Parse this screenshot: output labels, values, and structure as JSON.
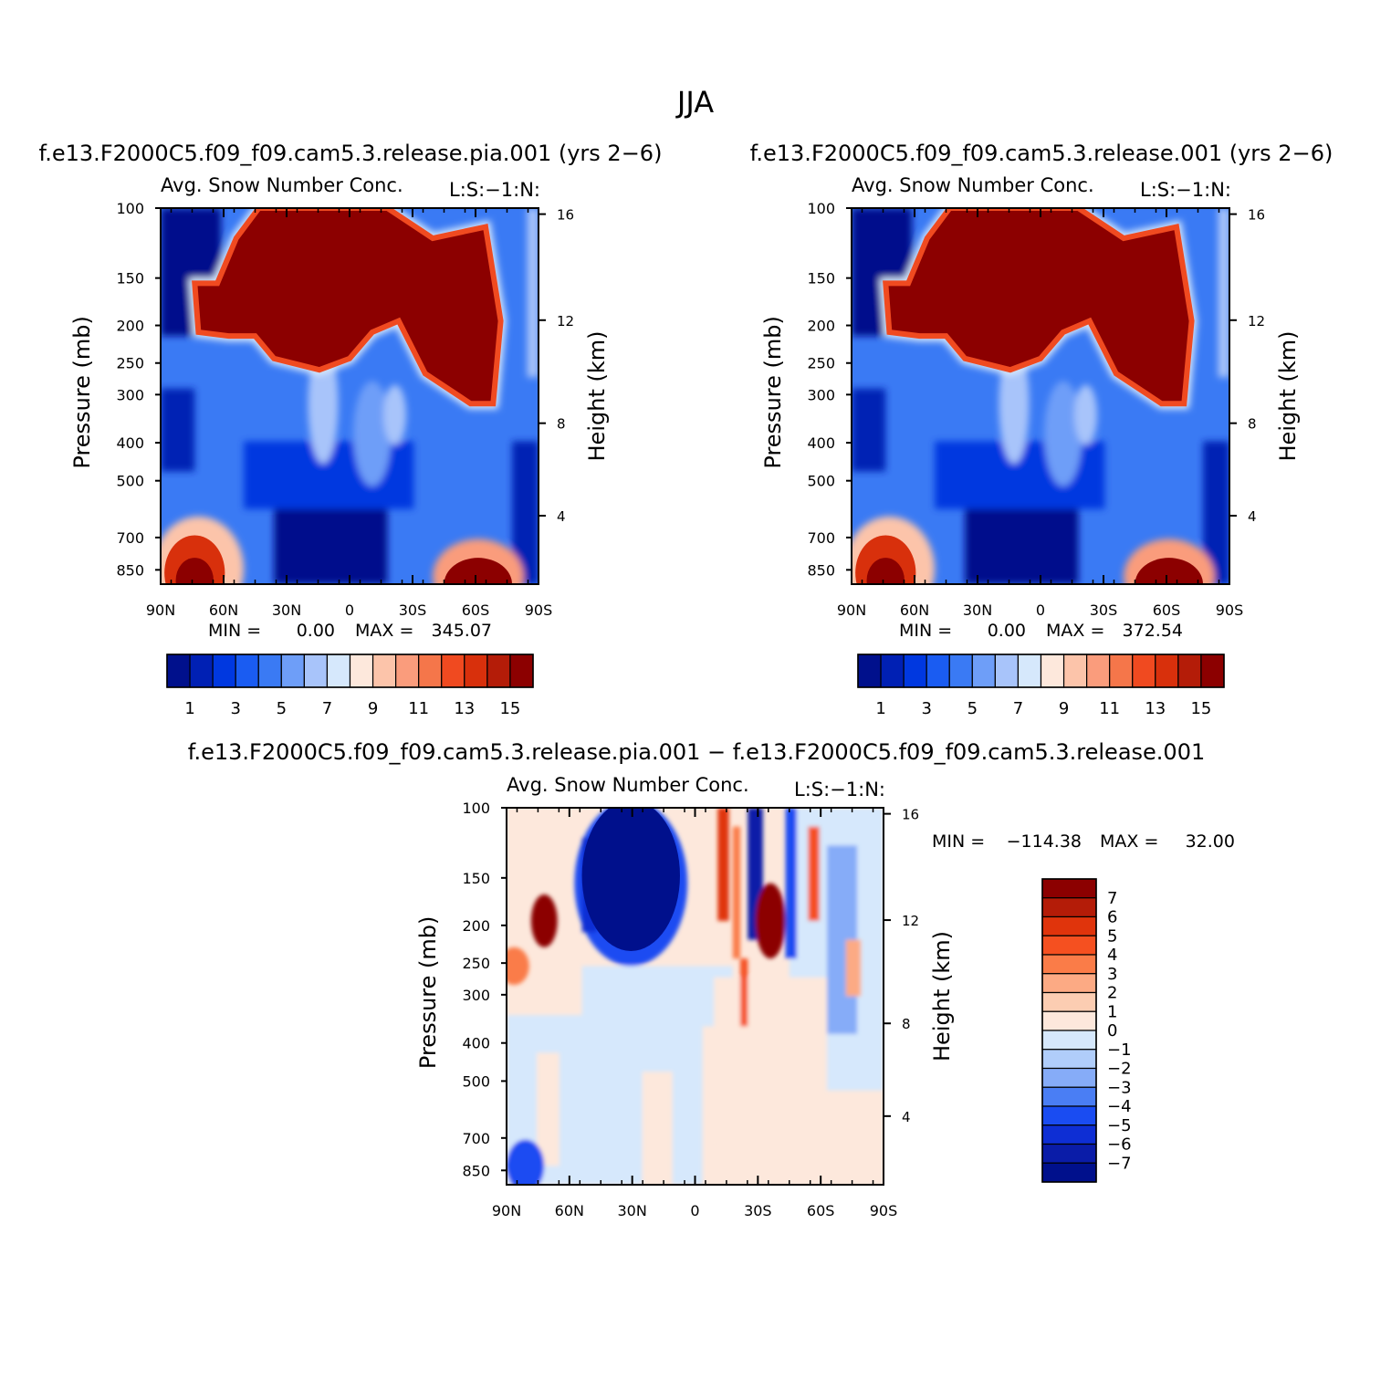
{
  "page_title": "JJA",
  "chart_data": [
    {
      "id": "panel1",
      "type": "heatmap",
      "case_title": "f.e13.F2000C5.f09_f09.cam5.3.release.pia.001 (yrs 2−6)",
      "title": "Avg. Snow Number Conc.",
      "units_label": "L:S:−1:N:",
      "ylabel": "Pressure (mb)",
      "ylabel_right": "Height (km)",
      "x_ticks": [
        "90N",
        "60N",
        "30N",
        "0",
        "30S",
        "60S",
        "90S"
      ],
      "y_ticks": [
        "100",
        "150",
        "200",
        "250",
        "300",
        "400",
        "500",
        "700",
        "850"
      ],
      "height_ticks": [
        "16",
        "12",
        "8",
        "4"
      ],
      "min_label": "MIN =",
      "min_value": "0.00",
      "max_label": "MAX =",
      "max_value": "345.07",
      "colorbar_labels": [
        "1",
        "3",
        "5",
        "7",
        "9",
        "11",
        "13",
        "15"
      ]
    },
    {
      "id": "panel2",
      "type": "heatmap",
      "case_title": "f.e13.F2000C5.f09_f09.cam5.3.release.001 (yrs 2−6)",
      "title": "Avg. Snow Number Conc.",
      "units_label": "L:S:−1:N:",
      "ylabel": "Pressure (mb)",
      "ylabel_right": "Height (km)",
      "x_ticks": [
        "90N",
        "60N",
        "30N",
        "0",
        "30S",
        "60S",
        "90S"
      ],
      "y_ticks": [
        "100",
        "150",
        "200",
        "250",
        "300",
        "400",
        "500",
        "700",
        "850"
      ],
      "height_ticks": [
        "16",
        "12",
        "8",
        "4"
      ],
      "min_label": "MIN =",
      "min_value": "0.00",
      "max_label": "MAX =",
      "max_value": "372.54",
      "colorbar_labels": [
        "1",
        "3",
        "5",
        "7",
        "9",
        "11",
        "13",
        "15"
      ]
    },
    {
      "id": "panel3",
      "type": "heatmap",
      "case_title": "f.e13.F2000C5.f09_f09.cam5.3.release.pia.001 − f.e13.F2000C5.f09_f09.cam5.3.release.001",
      "title": "Avg. Snow Number Conc.",
      "units_label": "L:S:−1:N:",
      "ylabel": "Pressure (mb)",
      "ylabel_right": "Height (km)",
      "x_ticks": [
        "90N",
        "60N",
        "30N",
        "0",
        "30S",
        "60S",
        "90S"
      ],
      "y_ticks": [
        "100",
        "150",
        "200",
        "250",
        "300",
        "400",
        "500",
        "700",
        "850"
      ],
      "height_ticks": [
        "16",
        "12",
        "8",
        "4"
      ],
      "min_label": "MIN =",
      "min_value": "−114.38",
      "max_label": "MAX =",
      "max_value": "32.00",
      "colorbar_labels": [
        "7",
        "6",
        "5",
        "4",
        "3",
        "2",
        "1",
        "0",
        "−1",
        "−2",
        "−3",
        "−4",
        "−5",
        "−6",
        "−7"
      ]
    }
  ],
  "colors": {
    "seq": [
      "#00108c",
      "#0020b4",
      "#0038e0",
      "#1a5cf2",
      "#3a7af4",
      "#6e9ef8",
      "#a8c4fa",
      "#d6e8fc",
      "#fde8dc",
      "#fcc4aa",
      "#fa9c7c",
      "#f5764a",
      "#f04a20",
      "#d8300c",
      "#b41c08",
      "#8c0000"
    ],
    "diff": [
      "#8c0000",
      "#b41c08",
      "#e0340c",
      "#f55020",
      "#fa7c48",
      "#fcaa84",
      "#fccdb2",
      "#fde8dc",
      "#d6e8fc",
      "#b0cdfa",
      "#86acf8",
      "#4a7ef4",
      "#1a4cf2",
      "#0e2ed4",
      "#0a1ca8",
      "#00108c"
    ]
  }
}
